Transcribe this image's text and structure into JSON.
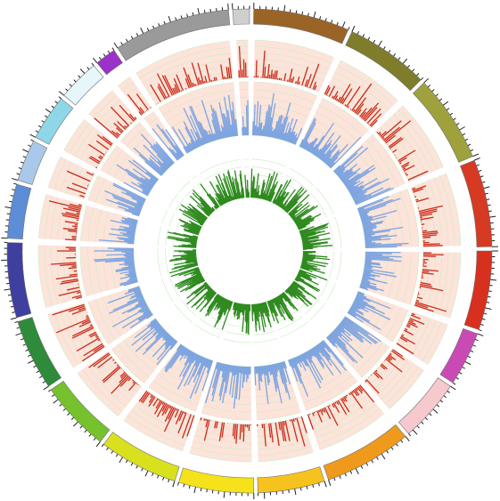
{
  "diagram": {
    "type": "circos-genome-plot",
    "title": "",
    "segments": [
      {
        "color": "#cfcfcf",
        "start_deg": 356,
        "end_deg": 360
      },
      {
        "color": "#9b6427",
        "start_deg": 1,
        "end_deg": 24
      },
      {
        "color": "#7f7d2c",
        "start_deg": 25,
        "end_deg": 45
      },
      {
        "color": "#9fa13c",
        "start_deg": 46,
        "end_deg": 67
      },
      {
        "color": "#d63a22",
        "start_deg": 68,
        "end_deg": 89
      },
      {
        "color": "#d8301f",
        "start_deg": 90,
        "end_deg": 109
      },
      {
        "color": "#c94ab5",
        "start_deg": 110,
        "end_deg": 123
      },
      {
        "color": "#f6c9cf",
        "start_deg": 124,
        "end_deg": 139
      },
      {
        "color": "#ef9a1c",
        "start_deg": 140,
        "end_deg": 161
      },
      {
        "color": "#f6c21d",
        "start_deg": 162,
        "end_deg": 178
      },
      {
        "color": "#f5e21b",
        "start_deg": 179,
        "end_deg": 197
      },
      {
        "color": "#d9e11e",
        "start_deg": 198,
        "end_deg": 217
      },
      {
        "color": "#76c12d",
        "start_deg": 218,
        "end_deg": 235
      },
      {
        "color": "#2e8b3a",
        "start_deg": 236,
        "end_deg": 253
      },
      {
        "color": "#3e3f9f",
        "start_deg": 254,
        "end_deg": 272
      },
      {
        "color": "#5c8dd6",
        "start_deg": 273,
        "end_deg": 286
      },
      {
        "color": "#aac9ea",
        "start_deg": 287,
        "end_deg": 297
      },
      {
        "color": "#8fd6e8",
        "start_deg": 298,
        "end_deg": 309
      },
      {
        "color": "#e6f6fb",
        "start_deg": 310,
        "end_deg": 320
      },
      {
        "color": "#9b33c8",
        "start_deg": 321,
        "end_deg": 326
      },
      {
        "color": "#9a9a9a",
        "start_deg": 327,
        "end_deg": 355
      }
    ],
    "tracks": [
      {
        "name": "",
        "color": "#cc2a1a",
        "background": "#fde3da",
        "grid_color": "#cfeec8",
        "relative_level": 0.22
      },
      {
        "name": "",
        "color": "#7fa5e0",
        "background": "#fde3da",
        "grid_color": "#cfeec8",
        "relative_level": 0.55
      },
      {
        "name": "",
        "color": "#2f8a1f",
        "background": "#ffffff",
        "grid_color": "#cfeec8",
        "relative_level": 0.5
      }
    ]
  }
}
